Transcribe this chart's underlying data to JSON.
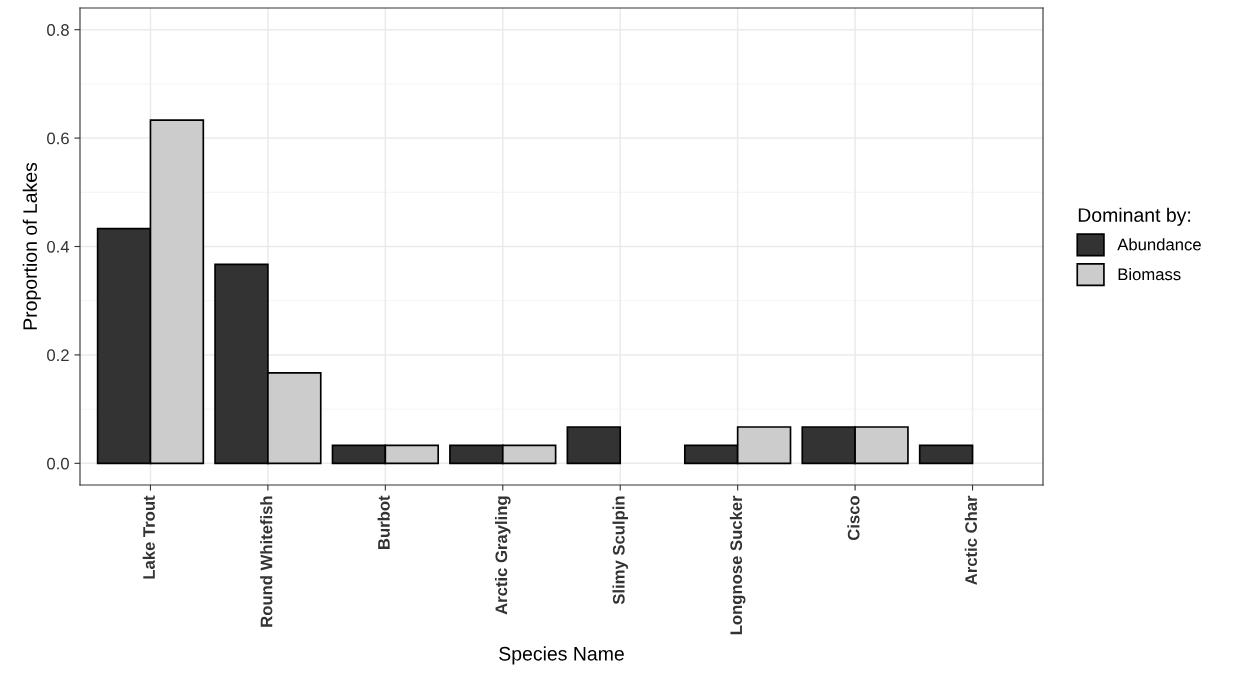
{
  "chart_data": {
    "type": "bar",
    "xlabel": "Species Name",
    "ylabel": "Proportion of Lakes",
    "legend_title": "Dominant by:",
    "categories": [
      "Lake Trout",
      "Round Whitefish",
      "Burbot",
      "Arctic Grayling",
      "Slimy Sculpin",
      "Longnose Sucker",
      "Cisco",
      "Arctic Char"
    ],
    "series": [
      {
        "name": "Abundance",
        "color": "#333333",
        "values": [
          0.433,
          0.367,
          0.033,
          0.033,
          0.067,
          0.033,
          0.067,
          0.033
        ]
      },
      {
        "name": "Biomass",
        "color": "#cccccc",
        "values": [
          0.633,
          0.167,
          0.033,
          0.033,
          null,
          0.067,
          0.067,
          null
        ]
      }
    ],
    "ylim": [
      -0.04,
      0.84
    ],
    "yticks": [
      {
        "value": 0,
        "label": "0.0"
      },
      0.2,
      0.4,
      0.6,
      0.8
    ],
    "grid": true,
    "legend": "right"
  }
}
